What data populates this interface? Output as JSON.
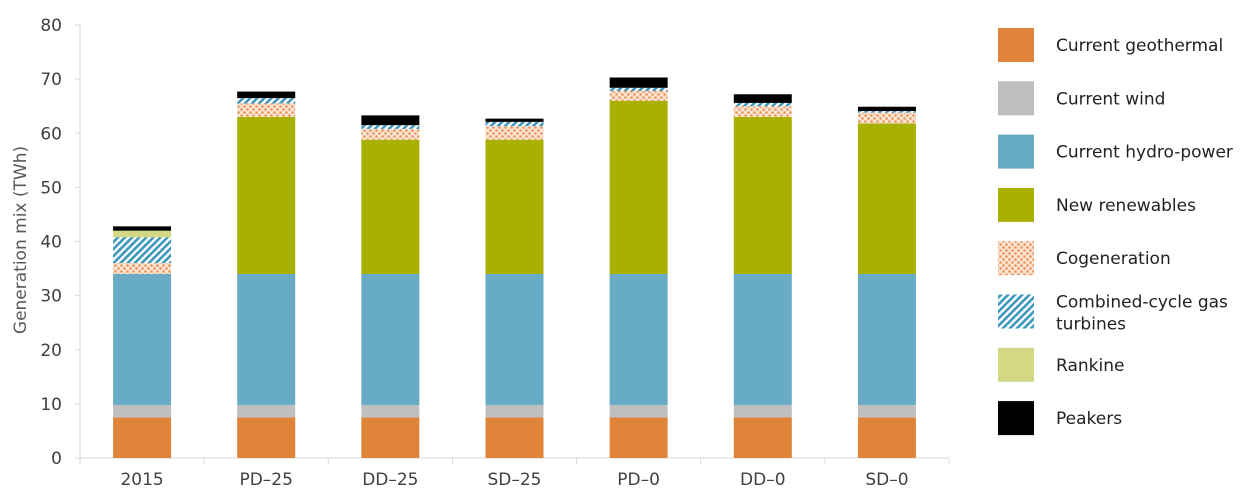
{
  "chart_data": {
    "type": "bar",
    "stacked": true,
    "title": "",
    "xlabel": "",
    "ylabel": "Generation mix (TWh)",
    "ylim": [
      0,
      80
    ],
    "yticks": [
      0,
      10,
      20,
      30,
      40,
      50,
      60,
      70,
      80
    ],
    "grid": false,
    "legend_position": "right",
    "categories": [
      "2015",
      "PD–25",
      "DD–25",
      "SD–25",
      "PD–0",
      "DD–0",
      "SD–0"
    ],
    "series": [
      {
        "name": "Current geothermal",
        "color": "#E0843A",
        "pattern": "solid",
        "values": [
          7.5,
          7.5,
          7.5,
          7.5,
          7.5,
          7.5,
          7.5
        ]
      },
      {
        "name": "Current wind",
        "color": "#BFBFBF",
        "pattern": "solid",
        "values": [
          2.3,
          2.3,
          2.3,
          2.3,
          2.3,
          2.3,
          2.3
        ]
      },
      {
        "name": "Current hydro-power",
        "color": "#67ABC5",
        "pattern": "solid",
        "values": [
          24.2,
          24.2,
          24.2,
          24.2,
          24.2,
          24.2,
          24.2
        ]
      },
      {
        "name": "New renewables",
        "color": "#A8B000",
        "pattern": "solid",
        "values": [
          0,
          29.0,
          24.8,
          24.8,
          32.0,
          29.0,
          27.8
        ]
      },
      {
        "name": "Cogeneration",
        "color": "#F2B183",
        "pattern": "dots",
        "values": [
          2.0,
          2.5,
          2.0,
          2.5,
          1.8,
          2.0,
          2.0
        ]
      },
      {
        "name": "Combined-cycle gas turbines",
        "color": "#5AAAC7",
        "pattern": "hatch",
        "values": [
          4.8,
          1.0,
          0.7,
          0.8,
          0.6,
          0.6,
          0.3
        ]
      },
      {
        "name": "Rankine",
        "color": "#D4D784",
        "pattern": "solid",
        "values": [
          1.2,
          0,
          0,
          0,
          0,
          0,
          0
        ]
      },
      {
        "name": "Peakers",
        "color": "#000000",
        "pattern": "solid",
        "values": [
          0.8,
          1.2,
          1.8,
          0.6,
          1.9,
          1.6,
          0.8
        ]
      }
    ]
  }
}
